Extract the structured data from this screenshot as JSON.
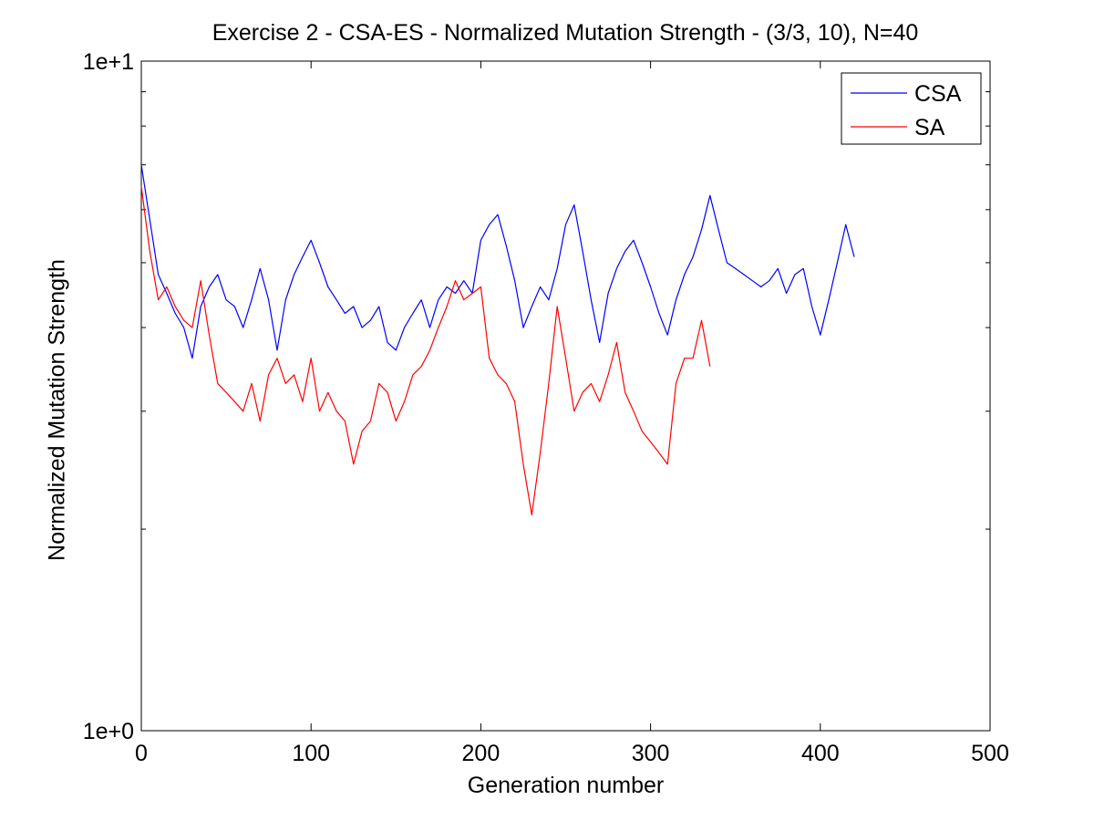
{
  "chart_data": {
    "type": "line",
    "title": "Exercise 2 - CSA-ES - Normalized Mutation Strength - (3/3, 10), N=40",
    "xlabel": "Generation number",
    "ylabel": "Normalized Mutation Strength",
    "xlim": [
      0,
      500
    ],
    "ylim": [
      1,
      10
    ],
    "yscale": "log",
    "grid": false,
    "legend_position": "top-right",
    "x_ticks": [
      "0",
      "100",
      "200",
      "300",
      "400",
      "500"
    ],
    "y_ticks": [
      "1e+0",
      "1e+1"
    ],
    "series": [
      {
        "name": "CSA",
        "color": "#0000ff",
        "x": [
          0,
          5,
          10,
          15,
          20,
          25,
          30,
          35,
          40,
          45,
          50,
          55,
          60,
          65,
          70,
          75,
          80,
          85,
          90,
          95,
          100,
          105,
          110,
          115,
          120,
          125,
          130,
          135,
          140,
          145,
          150,
          155,
          160,
          165,
          170,
          175,
          180,
          185,
          190,
          195,
          200,
          205,
          210,
          215,
          220,
          225,
          230,
          235,
          240,
          245,
          250,
          255,
          260,
          265,
          270,
          275,
          280,
          285,
          290,
          295,
          300,
          305,
          310,
          315,
          320,
          325,
          330,
          335,
          340,
          345,
          350,
          355,
          360,
          365,
          370,
          375,
          380,
          385,
          390,
          395,
          400,
          405,
          410,
          415,
          420
        ],
        "values": [
          7.0,
          5.8,
          4.8,
          4.5,
          4.2,
          4.0,
          3.6,
          4.3,
          4.6,
          4.8,
          4.4,
          4.3,
          4.0,
          4.4,
          4.9,
          4.4,
          3.7,
          4.4,
          4.8,
          5.1,
          5.4,
          5.0,
          4.6,
          4.4,
          4.2,
          4.3,
          4.0,
          4.1,
          4.3,
          3.8,
          3.7,
          4.0,
          4.2,
          4.4,
          4.0,
          4.4,
          4.6,
          4.5,
          4.7,
          4.5,
          5.4,
          5.7,
          5.9,
          5.3,
          4.7,
          4.0,
          4.3,
          4.6,
          4.4,
          4.9,
          5.7,
          6.1,
          5.2,
          4.4,
          3.8,
          4.5,
          4.9,
          5.2,
          5.4,
          5.0,
          4.6,
          4.2,
          3.9,
          4.4,
          4.8,
          5.1,
          5.6,
          6.3,
          5.6,
          5.0,
          4.9,
          4.8,
          4.7,
          4.6,
          4.7,
          4.9,
          4.5,
          4.8,
          4.9,
          4.3,
          3.9,
          4.4,
          5.0,
          5.7,
          5.1
        ]
      },
      {
        "name": "SA",
        "color": "#ff0000",
        "x": [
          0,
          5,
          10,
          15,
          20,
          25,
          30,
          35,
          40,
          45,
          50,
          55,
          60,
          65,
          70,
          75,
          80,
          85,
          90,
          95,
          100,
          105,
          110,
          115,
          120,
          125,
          130,
          135,
          140,
          145,
          150,
          155,
          160,
          165,
          170,
          175,
          180,
          185,
          190,
          195,
          200,
          205,
          210,
          215,
          220,
          225,
          230,
          235,
          240,
          245,
          250,
          255,
          260,
          265,
          270,
          275,
          280,
          285,
          290,
          295,
          300,
          305,
          310,
          315,
          320,
          325,
          330,
          335
        ],
        "values": [
          6.5,
          5.2,
          4.4,
          4.6,
          4.3,
          4.1,
          4.0,
          4.7,
          3.9,
          3.3,
          3.2,
          3.1,
          3.0,
          3.3,
          2.9,
          3.4,
          3.6,
          3.3,
          3.4,
          3.1,
          3.6,
          3.0,
          3.2,
          3.0,
          2.9,
          2.5,
          2.8,
          2.9,
          3.3,
          3.2,
          2.9,
          3.1,
          3.4,
          3.5,
          3.7,
          4.0,
          4.3,
          4.7,
          4.4,
          4.5,
          4.6,
          3.6,
          3.4,
          3.3,
          3.1,
          2.5,
          2.1,
          2.6,
          3.3,
          4.3,
          3.6,
          3.0,
          3.2,
          3.3,
          3.1,
          3.4,
          3.8,
          3.2,
          3.0,
          2.8,
          2.7,
          2.6,
          2.5,
          3.3,
          3.6,
          3.6,
          4.1,
          3.5
        ]
      }
    ]
  }
}
